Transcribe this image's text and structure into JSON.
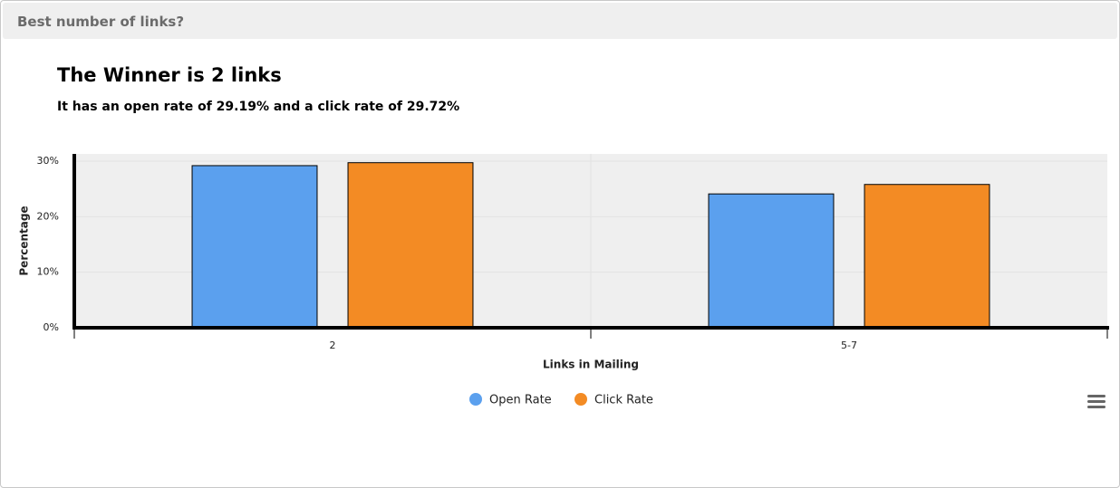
{
  "panel": {
    "title": "Best number of links?"
  },
  "heading": {
    "title": "The Winner is 2 links",
    "subtitle": "It has an open rate of 29.19% and a click rate of 29.72%"
  },
  "chart_data": {
    "type": "bar",
    "categories": [
      "2",
      "5-7"
    ],
    "series": [
      {
        "name": "Open Rate",
        "color": "#5ba0ee",
        "values": [
          29.19,
          24.1
        ]
      },
      {
        "name": "Click Rate",
        "color": "#f38b24",
        "values": [
          29.72,
          25.8
        ]
      }
    ],
    "x_label": "Links in Mailing",
    "y_label": "Percentage",
    "ylim": [
      0,
      31.3
    ],
    "yticks": [
      {
        "value": 0,
        "label": "0%"
      },
      {
        "value": 10,
        "label": "10%"
      },
      {
        "value": 20,
        "label": "20%"
      },
      {
        "value": 30,
        "label": "30%"
      }
    ],
    "grid": true,
    "legend": "bottom"
  }
}
